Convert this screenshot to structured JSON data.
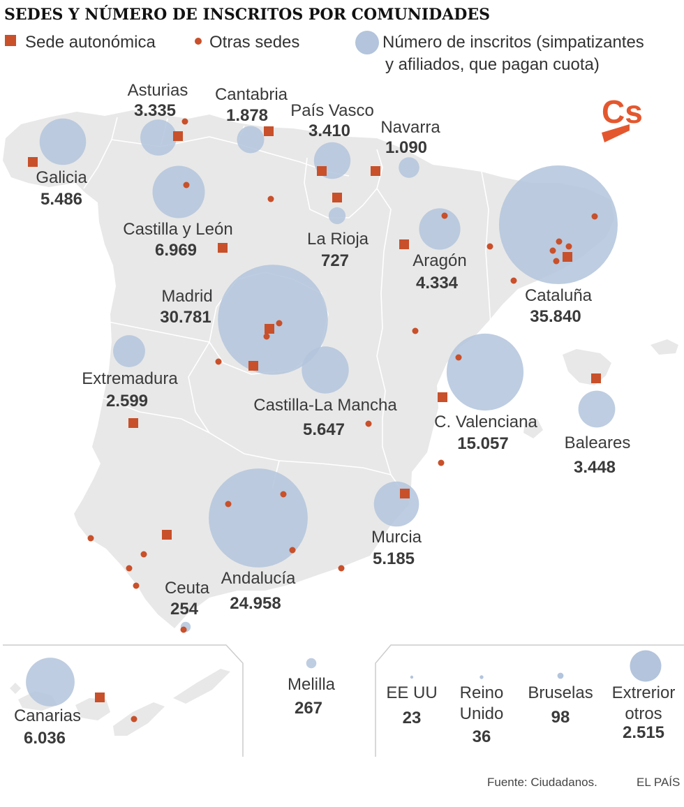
{
  "title": "SEDES Y NÚMERO DE INSCRITOS POR COMUNIDADES",
  "legend": {
    "sede_autonomica": "Sede autonómica",
    "otras_sedes": "Otras sedes",
    "inscritos_line1": "Número de inscritos (simpatizantes",
    "inscritos_line2": "y afiliados, que pagan cuota)"
  },
  "logo_text": "Cs",
  "colors": {
    "sede": "#c8502a",
    "bubble": "#b3c4dc",
    "land": "#e8e8e8",
    "text": "#3a3a3a"
  },
  "regions": [
    {
      "key": "asturias",
      "name": "Asturias",
      "value": "3.335",
      "count": 3335
    },
    {
      "key": "cantabria",
      "name": "Cantabria",
      "value": "1.878",
      "count": 1878
    },
    {
      "key": "pais_vasco",
      "name": "País Vasco",
      "value": "3.410",
      "count": 3410
    },
    {
      "key": "navarra",
      "name": "Navarra",
      "value": "1.090",
      "count": 1090
    },
    {
      "key": "galicia",
      "name": "Galicia",
      "value": "5.486",
      "count": 5486
    },
    {
      "key": "castilla_leon",
      "name": "Castilla y León",
      "value": "6.969",
      "count": 6969
    },
    {
      "key": "la_rioja",
      "name": "La Rioja",
      "value": "727",
      "count": 727
    },
    {
      "key": "aragon",
      "name": "Aragón",
      "value": "4.334",
      "count": 4334
    },
    {
      "key": "cataluna",
      "name": "Cataluña",
      "value": "35.840",
      "count": 35840
    },
    {
      "key": "madrid",
      "name": "Madrid",
      "value": "30.781",
      "count": 30781
    },
    {
      "key": "extremadura",
      "name": "Extremadura",
      "value": "2.599",
      "count": 2599
    },
    {
      "key": "castilla_la_mancha",
      "name": "Castilla-La Mancha",
      "value": "5.647",
      "count": 5647
    },
    {
      "key": "c_valenciana",
      "name": "C. Valenciana",
      "value": "15.057",
      "count": 15057
    },
    {
      "key": "baleares",
      "name": "Baleares",
      "value": "3.448",
      "count": 3448
    },
    {
      "key": "murcia",
      "name": "Murcia",
      "value": "5.185",
      "count": 5185
    },
    {
      "key": "andalucia",
      "name": "Andalucía",
      "value": "24.958",
      "count": 24958
    },
    {
      "key": "ceuta",
      "name": "Ceuta",
      "value": "254",
      "count": 254
    },
    {
      "key": "canarias",
      "name": "Canarias",
      "value": "6.036",
      "count": 6036
    },
    {
      "key": "melilla",
      "name": "Melilla",
      "value": "267",
      "count": 267
    }
  ],
  "exterior": [
    {
      "key": "ee_uu",
      "line1": "EE UU",
      "line2": "",
      "value": "23",
      "count": 23
    },
    {
      "key": "reino_unido",
      "line1": "Reino",
      "line2": "Unido",
      "value": "36",
      "count": 36
    },
    {
      "key": "bruselas",
      "line1": "Bruselas",
      "line2": "",
      "value": "98",
      "count": 98
    },
    {
      "key": "exterior_otros",
      "line1": "Extrerior",
      "line2": "otros",
      "value": "2.515",
      "count": 2515
    }
  ],
  "source": "Fuente: Ciudadanos.",
  "credit": "EL PAÍS"
}
